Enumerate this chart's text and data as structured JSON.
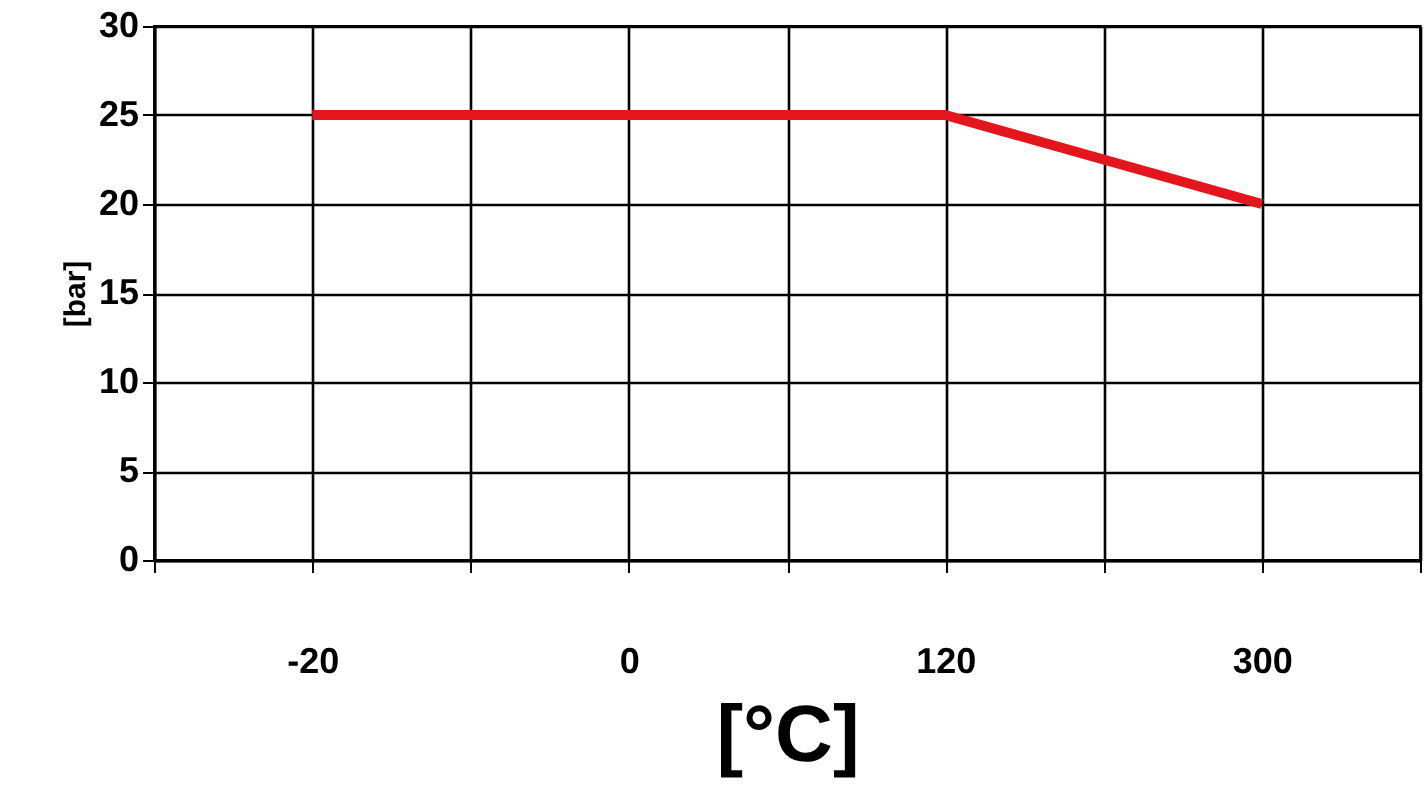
{
  "chart_data": {
    "type": "line",
    "xlabel": "[°C]",
    "ylabel": "[bar]",
    "categories": [
      null,
      "-20",
      null,
      "0",
      null,
      "120",
      null,
      "300",
      null
    ],
    "series": [
      {
        "color": "#e3161d",
        "values": [
          null,
          25,
          25,
          25,
          25,
          25,
          22.5,
          20,
          null
        ]
      }
    ],
    "ylim": [
      0,
      30
    ],
    "yticks": [
      0,
      5,
      10,
      15,
      20,
      25,
      30
    ],
    "grid": true,
    "marker": "none",
    "line_style": "solid"
  }
}
